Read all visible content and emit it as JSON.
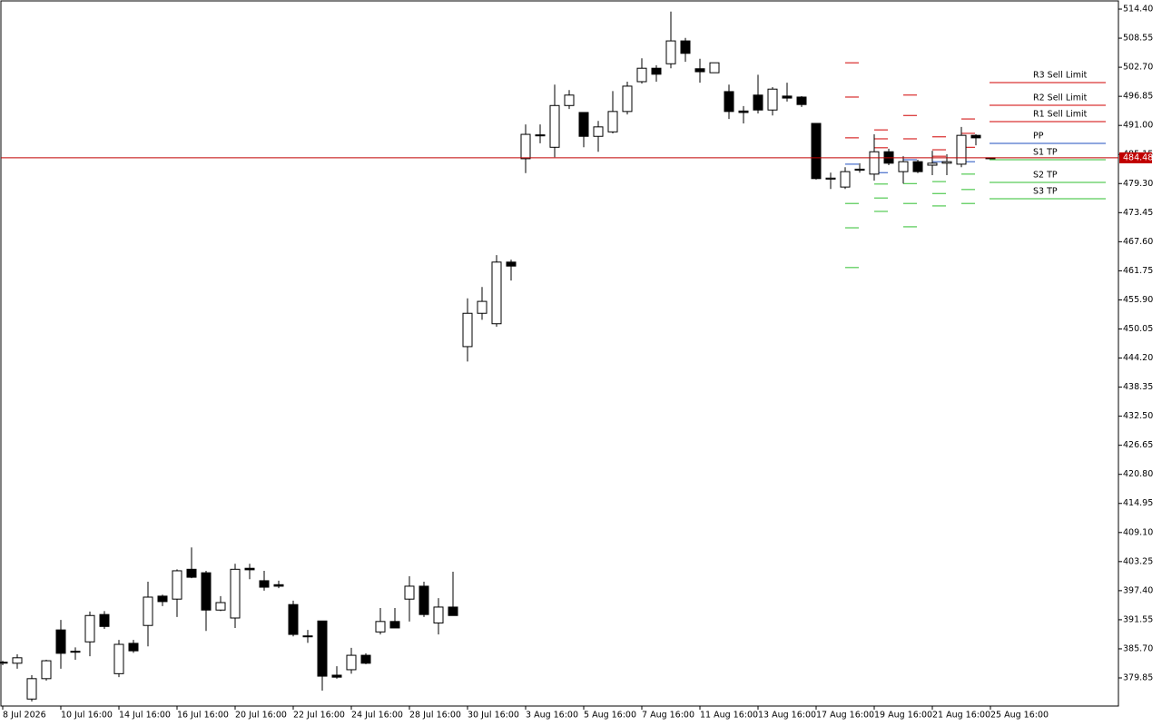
{
  "chart_data": {
    "type": "candlestick",
    "categories": [
      "8 Jul 2026",
      null,
      null,
      null,
      "10 Jul 16:00",
      null,
      null,
      null,
      "14 Jul 16:00",
      null,
      null,
      null,
      "16 Jul 16:00",
      null,
      null,
      null,
      "20 Jul 16:00",
      null,
      null,
      null,
      "22 Jul 16:00",
      null,
      null,
      null,
      "24 Jul 16:00",
      null,
      null,
      null,
      "28 Jul 16:00",
      null,
      null,
      null,
      "30 Jul 16:00",
      null,
      null,
      null,
      "3 Aug 16:00",
      null,
      null,
      null,
      "5 Aug 16:00",
      null,
      null,
      null,
      "7 Aug 16:00",
      null,
      null,
      null,
      "11 Aug 16:00",
      null,
      null,
      null,
      "13 Aug 16:00",
      null,
      null,
      null,
      "17 Aug 16:00",
      null,
      null,
      null,
      "19 Aug 16:00",
      null,
      null,
      null,
      "21 Aug 16:00",
      null,
      null,
      null,
      "25 Aug 16:00"
    ],
    "open": [
      382.9,
      382.8,
      375.6,
      379.7,
      389.5,
      385.2,
      387.1,
      392.6,
      380.7,
      386.8,
      390.4,
      396.3,
      395.7,
      401.7,
      401.0,
      393.5,
      391.9,
      401.9,
      399.4,
      398.6,
      394.6,
      388.3,
      391.3,
      380.4,
      381.5,
      384.4,
      389.1,
      391.2,
      395.7,
      398.3,
      390.9,
      394.1,
      446.5,
      453.2,
      451.1,
      463.5,
      484.3,
      489.1,
      486.6,
      495.0,
      493.6,
      488.8,
      489.7,
      493.8,
      499.8,
      502.5,
      503.4,
      508.0,
      502.4,
      501.6,
      497.8,
      493.9,
      497.1,
      494.1,
      496.9,
      496.7,
      491.4,
      480.2,
      478.6,
      482.0,
      481.2,
      485.7,
      481.7,
      483.7,
      483.0,
      483.4,
      483.2,
      489.0,
      484.48
    ],
    "high": [
      383.3,
      384.6,
      380.4,
      383.5,
      391.5,
      386.0,
      393.2,
      393.3,
      387.5,
      387.5,
      399.2,
      396.6,
      401.7,
      406.1,
      401.4,
      396.3,
      402.8,
      402.8,
      401.4,
      399.4,
      395.4,
      389.5,
      391.3,
      382.2,
      385.9,
      384.8,
      393.9,
      393.9,
      400.3,
      399.2,
      395.9,
      401.2,
      456.2,
      458.5,
      464.9,
      464.0,
      491.2,
      491.2,
      499.2,
      498.1,
      493.6,
      491.9,
      497.9,
      499.8,
      504.5,
      503.1,
      513.9,
      508.6,
      504.4,
      503.6,
      499.2,
      494.9,
      501.2,
      498.7,
      499.6,
      496.9,
      491.4,
      481.5,
      482.6,
      483.4,
      489.2,
      486.3,
      484.8,
      484.1,
      485.9,
      485.2,
      490.7,
      489.2,
      484.48
    ],
    "low": [
      382.4,
      381.7,
      375.1,
      379.3,
      381.7,
      383.5,
      384.2,
      389.7,
      380.0,
      384.9,
      386.2,
      394.3,
      392.1,
      399.9,
      389.3,
      393.3,
      389.9,
      399.7,
      397.4,
      397.9,
      388.2,
      386.9,
      377.3,
      379.7,
      380.7,
      382.6,
      388.6,
      389.9,
      391.2,
      392.1,
      388.6,
      392.4,
      443.5,
      451.9,
      450.5,
      459.8,
      481.4,
      487.4,
      484.6,
      494.3,
      486.6,
      485.7,
      489.4,
      493.2,
      499.4,
      499.8,
      502.5,
      503.8,
      499.6,
      501.6,
      492.3,
      491.4,
      493.4,
      493.0,
      495.8,
      494.7,
      480.1,
      478.2,
      478.2,
      481.5,
      479.9,
      483.0,
      479.3,
      481.4,
      481.0,
      481.0,
      482.6,
      487.0,
      484.48
    ],
    "close": [
      383.0,
      383.9,
      379.7,
      383.3,
      384.8,
      385.1,
      392.4,
      390.2,
      386.6,
      385.3,
      396.1,
      395.2,
      401.4,
      400.1,
      393.5,
      395.0,
      401.7,
      401.6,
      398.1,
      398.3,
      388.6,
      388.2,
      380.2,
      380.0,
      384.4,
      382.8,
      391.2,
      389.9,
      398.3,
      392.6,
      394.1,
      392.4,
      453.2,
      455.6,
      463.5,
      462.7,
      489.2,
      488.9,
      495.0,
      497.1,
      488.8,
      490.7,
      493.8,
      498.9,
      502.5,
      501.3,
      508.0,
      505.5,
      501.8,
      503.6,
      493.8,
      493.6,
      494.1,
      498.3,
      496.5,
      495.2,
      480.3,
      480.4,
      481.7,
      482.2,
      485.7,
      483.4,
      483.7,
      481.7,
      483.4,
      483.7,
      489.0,
      488.5,
      484.48
    ],
    "up_color": "#ffffff",
    "down_color": "#000000",
    "ylim": [
      374.19,
      516.23
    ],
    "yticks": [
      {
        "value": 514.4,
        "label": "514.40"
      },
      508.55,
      {
        "value": 502.7,
        "label": "502.70"
      },
      496.85,
      {
        "value": 491,
        "label": "491.00"
      },
      485.15,
      {
        "value": 479.3,
        "label": "479.30"
      },
      473.45,
      {
        "value": 467.6,
        "label": "467.60"
      },
      461.75,
      {
        "value": 455.9,
        "label": "455.90"
      },
      450.05,
      {
        "value": 444.2,
        "label": "444.20"
      },
      438.35,
      {
        "value": 432.5,
        "label": "432.50"
      },
      426.65,
      {
        "value": 420.8,
        "label": "420.80"
      },
      414.95,
      {
        "value": 409.1,
        "label": "409.10"
      },
      403.25,
      {
        "value": 397.4,
        "label": "397.40"
      },
      391.55,
      {
        "value": 385.7,
        "label": "385.70"
      },
      379.85
    ],
    "current_price": 484.48,
    "current_price_color": "#c00000",
    "pivots": [
      {
        "name": "R3 Sell Limit",
        "value": 499.61,
        "color": "#d00000"
      },
      {
        "name": "R2 Sell Limit",
        "value": 495.05,
        "color": "#d00000"
      },
      {
        "name": "R1 Sell Limit",
        "value": 491.76,
        "color": "#d00000"
      },
      {
        "name": "PP",
        "value": 487.38,
        "color": "#1f4fbf"
      },
      {
        "name": "S1 TP",
        "value": 484.09,
        "color": "#2fbf2f"
      },
      {
        "name": "S2 TP",
        "value": 479.53,
        "color": "#2fbf2f"
      },
      {
        "name": "S3 TP",
        "value": 476.24,
        "color": "#2fbf2f"
      }
    ],
    "pivot_history": [
      {
        "bar": 58,
        "levels": [
          503.6,
          496.7,
          488.5,
          483.2,
          475.3,
          470.4,
          462.4
        ]
      },
      {
        "bar": 60,
        "levels": [
          490.1,
          488.3,
          486.5,
          481.5,
          479.2,
          476.4,
          473.7
        ]
      },
      {
        "bar": 62,
        "levels": [
          497.1,
          493.0,
          488.3,
          484.1,
          479.3,
          475.3,
          470.6
        ]
      },
      {
        "bar": 64,
        "levels": [
          488.7,
          486.1,
          484.8,
          483.7,
          479.7,
          477.3,
          474.8
        ]
      },
      {
        "bar": 66,
        "levels": [
          492.3,
          489.4,
          486.6,
          483.7,
          481.2,
          478.1,
          475.3
        ]
      }
    ]
  }
}
